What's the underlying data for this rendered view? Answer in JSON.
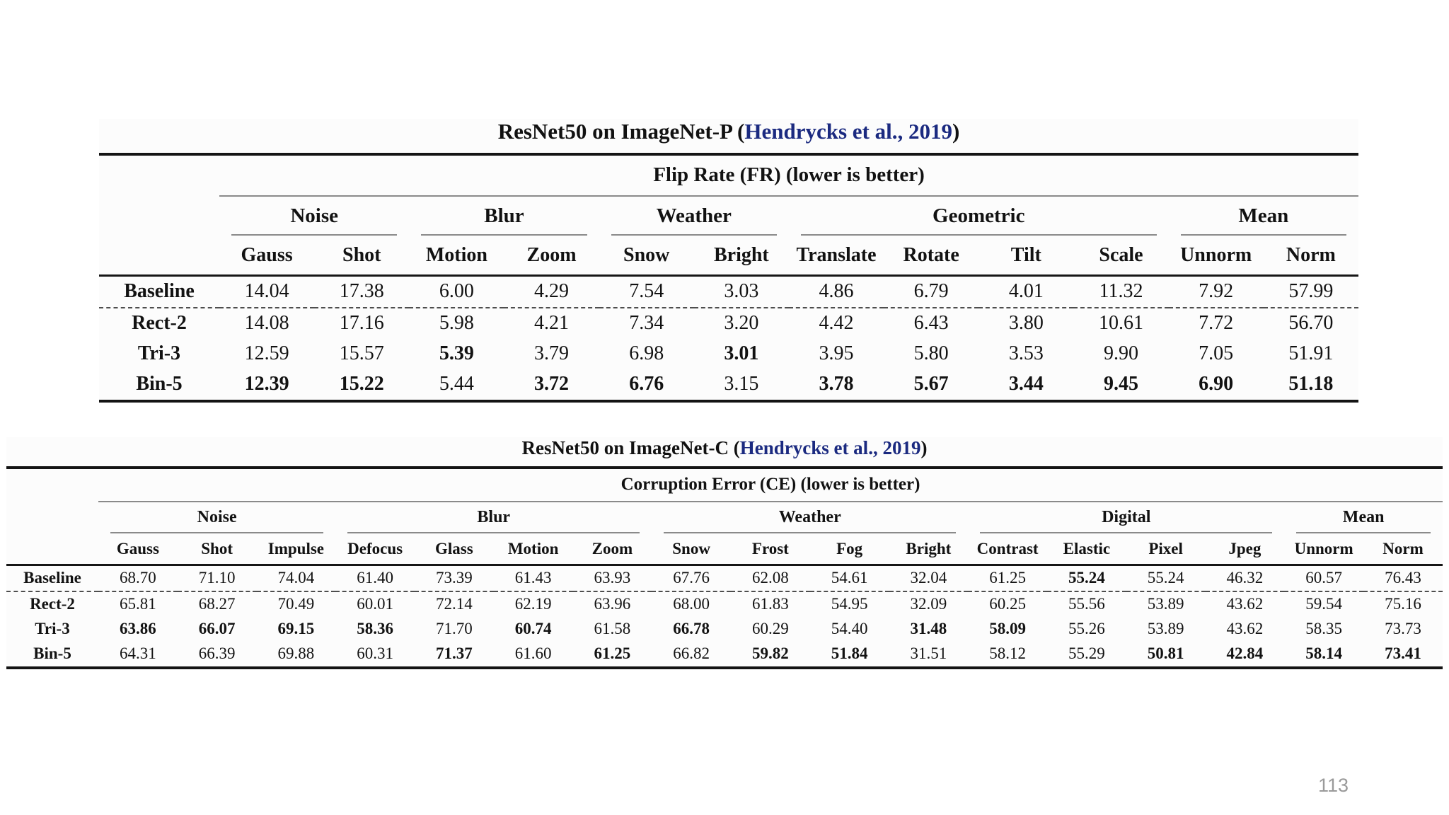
{
  "page_number": "113",
  "colors": {
    "citation_link": "#1b2a80",
    "text": "#121212",
    "page_number": "#9a9a9a"
  },
  "tables": [
    {
      "title_prefix": "ResNet50 on ImageNet-P (",
      "title_link": "Hendrycks et al., 2019",
      "title_suffix": ")",
      "subtitle": "Flip Rate (FR) (lower is better)",
      "groups": [
        {
          "label": "Noise",
          "span": 2
        },
        {
          "label": "Blur",
          "span": 2
        },
        {
          "label": "Weather",
          "span": 2
        },
        {
          "label": "Geometric",
          "span": 4
        },
        {
          "label": "Mean",
          "span": 2
        }
      ],
      "columns": [
        "Gauss",
        "Shot",
        "Motion",
        "Zoom",
        "Snow",
        "Bright",
        "Translate",
        "Rotate",
        "Tilt",
        "Scale",
        "Unnorm",
        "Norm"
      ],
      "rows": [
        {
          "label": "Baseline",
          "cells": [
            "14.04",
            "17.38",
            "6.00",
            "4.29",
            "7.54",
            "3.03",
            "4.86",
            "6.79",
            "4.01",
            "11.32",
            "7.92",
            "57.99"
          ]
        },
        {
          "label": "Rect-2",
          "cells": [
            "14.08",
            "17.16",
            "5.98",
            "4.21",
            "7.34",
            "3.20",
            "4.42",
            "6.43",
            "3.80",
            "10.61",
            "7.72",
            "56.70"
          ]
        },
        {
          "label": "Tri-3",
          "cells": [
            "12.59",
            "15.57",
            {
              "v": "5.39",
              "b": true
            },
            "3.79",
            "6.98",
            {
              "v": "3.01",
              "b": true
            },
            "3.95",
            "5.80",
            "3.53",
            "9.90",
            "7.05",
            "51.91"
          ]
        },
        {
          "label": "Bin-5",
          "cells": [
            {
              "v": "12.39",
              "b": true
            },
            {
              "v": "15.22",
              "b": true
            },
            "5.44",
            {
              "v": "3.72",
              "b": true
            },
            {
              "v": "6.76",
              "b": true
            },
            "3.15",
            {
              "v": "3.78",
              "b": true
            },
            {
              "v": "5.67",
              "b": true
            },
            {
              "v": "3.44",
              "b": true
            },
            {
              "v": "9.45",
              "b": true
            },
            {
              "v": "6.90",
              "b": true
            },
            {
              "v": "51.18",
              "b": true
            }
          ]
        }
      ]
    },
    {
      "title_prefix": "ResNet50 on ImageNet-C (",
      "title_link": "Hendrycks et al., 2019",
      "title_suffix": ")",
      "subtitle": "Corruption Error (CE) (lower is better)",
      "groups": [
        {
          "label": "Noise",
          "span": 3
        },
        {
          "label": "Blur",
          "span": 4
        },
        {
          "label": "Weather",
          "span": 4
        },
        {
          "label": "Digital",
          "span": 4
        },
        {
          "label": "Mean",
          "span": 2
        }
      ],
      "columns": [
        "Gauss",
        "Shot",
        "Impulse",
        "Defocus",
        "Glass",
        "Motion",
        "Zoom",
        "Snow",
        "Frost",
        "Fog",
        "Bright",
        "Contrast",
        "Elastic",
        "Pixel",
        "Jpeg",
        "Unnorm",
        "Norm"
      ],
      "rows": [
        {
          "label": "Baseline",
          "cells": [
            "68.70",
            "71.10",
            "74.04",
            "61.40",
            "73.39",
            "61.43",
            "63.93",
            "67.76",
            "62.08",
            "54.61",
            "32.04",
            "61.25",
            {
              "v": "55.24",
              "b": true
            },
            "55.24",
            "46.32",
            "60.57",
            "76.43"
          ]
        },
        {
          "label": "Rect-2",
          "cells": [
            "65.81",
            "68.27",
            "70.49",
            "60.01",
            "72.14",
            "62.19",
            "63.96",
            "68.00",
            "61.83",
            "54.95",
            "32.09",
            "60.25",
            "55.56",
            "53.89",
            "43.62",
            "59.54",
            "75.16"
          ]
        },
        {
          "label": "Tri-3",
          "cells": [
            {
              "v": "63.86",
              "b": true
            },
            {
              "v": "66.07",
              "b": true
            },
            {
              "v": "69.15",
              "b": true
            },
            {
              "v": "58.36",
              "b": true
            },
            "71.70",
            {
              "v": "60.74",
              "b": true
            },
            "61.58",
            {
              "v": "66.78",
              "b": true
            },
            "60.29",
            "54.40",
            {
              "v": "31.48",
              "b": true
            },
            {
              "v": "58.09",
              "b": true
            },
            "55.26",
            "53.89",
            "43.62",
            "58.35",
            "73.73"
          ]
        },
        {
          "label": "Bin-5",
          "cells": [
            "64.31",
            "66.39",
            "69.88",
            "60.31",
            {
              "v": "71.37",
              "b": true
            },
            "61.60",
            {
              "v": "61.25",
              "b": true
            },
            "66.82",
            {
              "v": "59.82",
              "b": true
            },
            {
              "v": "51.84",
              "b": true
            },
            "31.51",
            "58.12",
            "55.29",
            {
              "v": "50.81",
              "b": true
            },
            {
              "v": "42.84",
              "b": true
            },
            {
              "v": "58.14",
              "b": true
            },
            {
              "v": "73.41",
              "b": true
            }
          ]
        }
      ]
    }
  ]
}
